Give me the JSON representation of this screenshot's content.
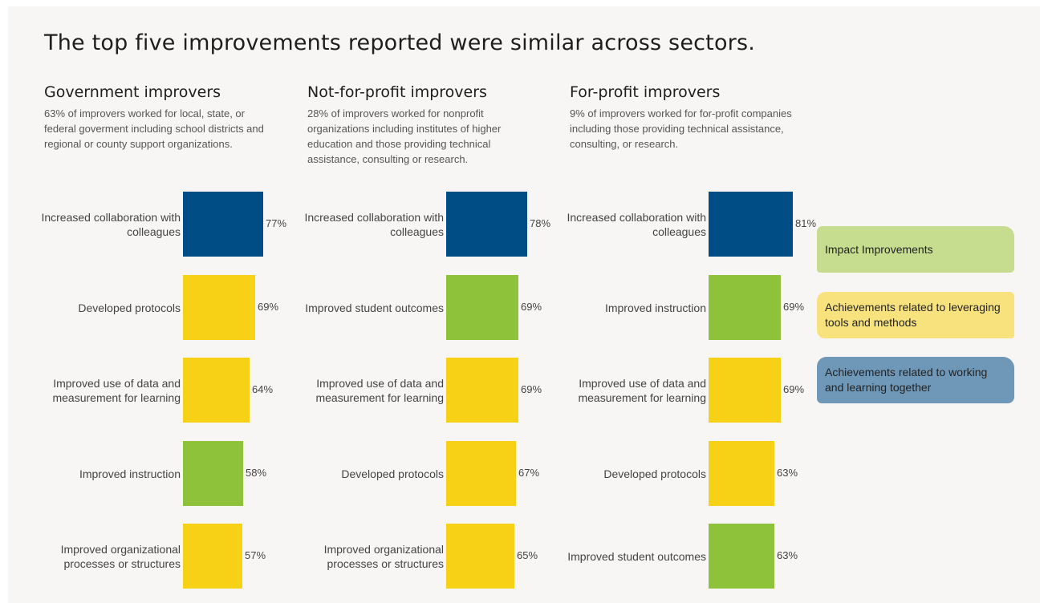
{
  "title": "The top five improvements reported were similar across sectors.",
  "colors": {
    "impact": "#8dc23a",
    "tools": "#f7d115",
    "together": "#004c84"
  },
  "legend": [
    {
      "key": "impact",
      "label": "Impact Improvements",
      "color": "#c6dc8e"
    },
    {
      "key": "tools",
      "label": "Achievements related to leveraging tools and methods",
      "color": "#f7e27e"
    },
    {
      "key": "together",
      "label": "Achievements related to working and learning together",
      "color": "#6f98b8"
    }
  ],
  "panels": [
    {
      "title": "Government improvers",
      "description": "63% of improvers worked for local, state, or federal goverment including school districts and regional or county support organizations."
    },
    {
      "title": "Not-for-profit improvers",
      "description": "28% of improvers worked for nonprofit organizations including institutes of higher education and those providing technical assistance, consulting or research."
    },
    {
      "title": "For-profit improvers",
      "description": "9% of improvers worked for for-profit companies including those providing technical assistance, consulting, or research."
    }
  ],
  "chart_data": [
    {
      "type": "bar",
      "title": "Government improvers",
      "orientation": "horizontal",
      "categories": [
        "Increased collaboration with colleagues",
        "Developed protocols",
        "Improved use of data and measurement for learning",
        "Improved instruction",
        "Improved organizational processes or structures"
      ],
      "values": [
        77,
        69,
        64,
        58,
        57
      ],
      "value_labels": [
        "77%",
        "69%",
        "64%",
        "58%",
        "57%"
      ],
      "groups": [
        "together",
        "tools",
        "tools",
        "impact",
        "tools"
      ]
    },
    {
      "type": "bar",
      "title": "Not-for-profit improvers",
      "orientation": "horizontal",
      "categories": [
        "Increased collaboration with colleagues",
        "Improved student outcomes",
        "Improved use of data and measurement for learning",
        "Developed protocols",
        "Improved organizational processes or structures"
      ],
      "values": [
        78,
        69,
        69,
        67,
        65
      ],
      "value_labels": [
        "78%",
        "69%",
        "69%",
        "67%",
        "65%"
      ],
      "groups": [
        "together",
        "impact",
        "tools",
        "tools",
        "tools"
      ]
    },
    {
      "type": "bar",
      "title": "For-profit improvers",
      "orientation": "horizontal",
      "categories": [
        "Increased collaboration with colleagues",
        "Improved instruction",
        "Improved use of data and measurement for learning",
        "Developed protocols",
        "Improved student outcomes"
      ],
      "values": [
        81,
        69,
        69,
        63,
        63
      ],
      "value_labels": [
        "81%",
        "69%",
        "69%",
        "63%",
        "63%"
      ],
      "groups": [
        "together",
        "impact",
        "tools",
        "tools",
        "impact"
      ]
    }
  ]
}
